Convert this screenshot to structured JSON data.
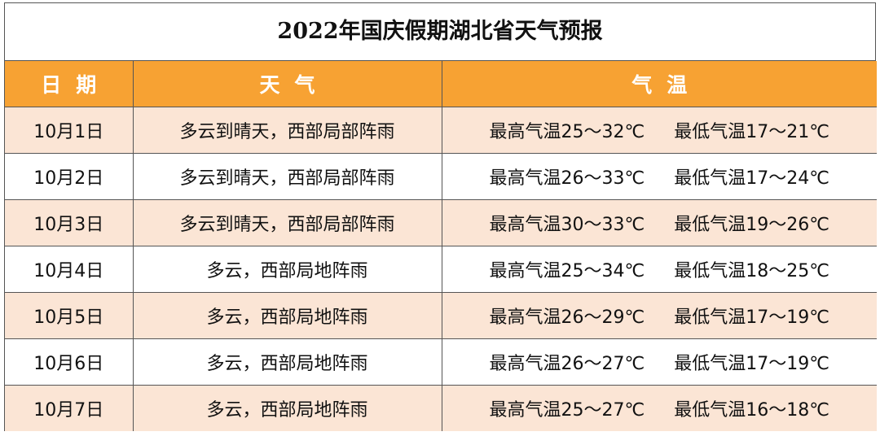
{
  "title": "2022年国庆假期湖北省天气预报",
  "headers": {
    "date": "日期",
    "weather": "天气",
    "temperature": "气温"
  },
  "rows": [
    {
      "date": "10月1日",
      "weather": "多云到晴天，西部局部阵雨",
      "high": "最高气温25～32℃",
      "low": "最低气温17～21℃"
    },
    {
      "date": "10月2日",
      "weather": "多云到晴天，西部局部阵雨",
      "high": "最高气温26～33℃",
      "low": "最低气温17～24℃"
    },
    {
      "date": "10月3日",
      "weather": "多云到晴天，西部局部阵雨",
      "high": "最高气温30～33℃",
      "low": "最低气温19～26℃"
    },
    {
      "date": "10月4日",
      "weather": "多云，西部局地阵雨",
      "high": "最高气温25～34℃",
      "low": "最低气温18～25℃"
    },
    {
      "date": "10月5日",
      "weather": "多云，西部局地阵雨",
      "high": "最高气温26～29℃",
      "low": "最低气温17～19℃"
    },
    {
      "date": "10月6日",
      "weather": "多云，西部局地阵雨",
      "high": "最高气温26～27℃",
      "low": "最低气温17～19℃"
    },
    {
      "date": "10月7日",
      "weather": "多云，西部局地阵雨",
      "high": "最高气温25～27℃",
      "low": "最低气温16～18℃"
    }
  ],
  "colors": {
    "header_bg": "#f7a233",
    "stripe_bg": "#fbe5d5",
    "header_text": "#ffffff"
  }
}
